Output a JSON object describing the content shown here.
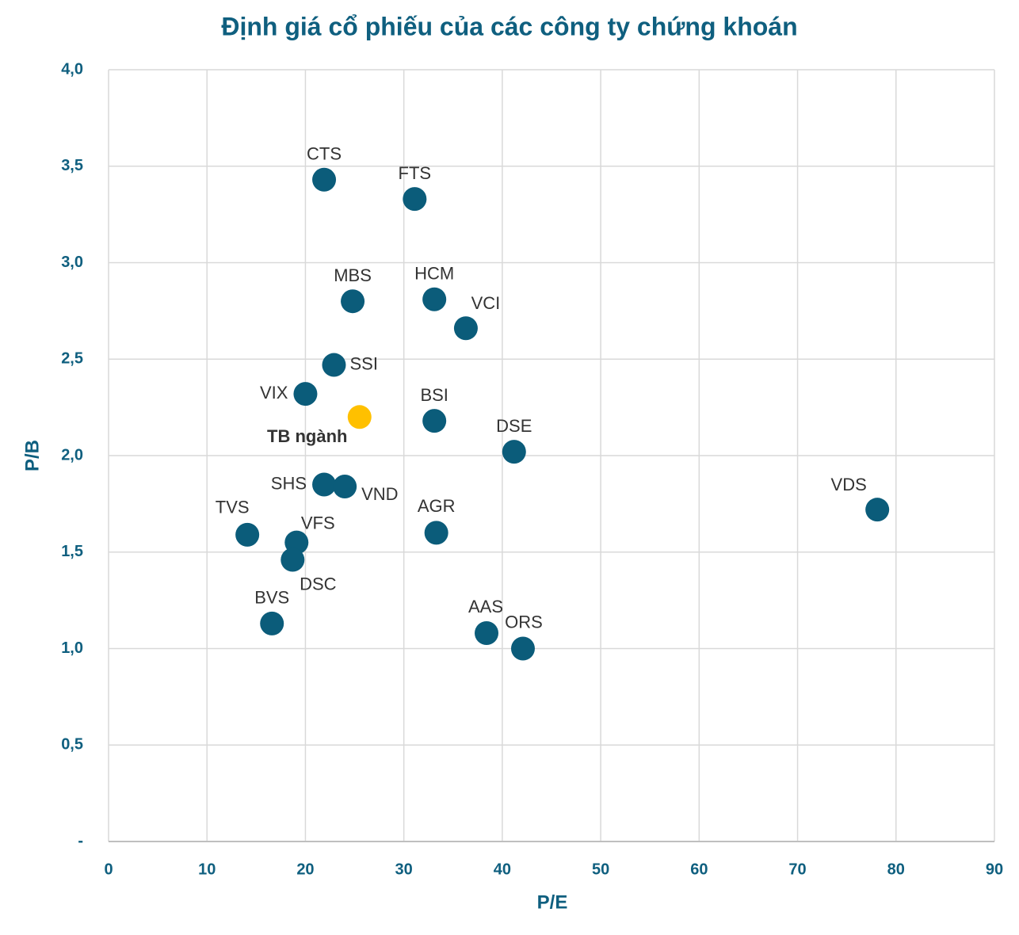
{
  "chart_data": {
    "type": "scatter",
    "title": "Định giá cổ phiếu của các công ty chứng khoán",
    "x_label": "P/E",
    "y_label": "P/B",
    "xlim": [
      0,
      90
    ],
    "xticks": [
      0,
      10,
      20,
      30,
      40,
      50,
      60,
      70,
      80,
      90
    ],
    "ylim": [
      0,
      4
    ],
    "yticks": [
      {
        "value": 0,
        "label": "-"
      },
      {
        "value": 0.5,
        "label": "0,5"
      },
      {
        "value": 1,
        "label": "1,0"
      },
      {
        "value": 1.5,
        "label": "1,5"
      },
      {
        "value": 2,
        "label": "2,0"
      },
      {
        "value": 2.5,
        "label": "2,5"
      },
      {
        "value": 3,
        "label": "3,0"
      },
      {
        "value": 3.5,
        "label": "3,5"
      },
      {
        "value": 4,
        "label": "4,0"
      }
    ],
    "grid": true,
    "series": [
      {
        "color": "#0b5c7a",
        "labels": [
          "CTS",
          "FTS",
          "MBS",
          "HCM",
          "VCI",
          "SSI",
          "VIX",
          "BSI",
          "DSE",
          "SHS",
          "VND",
          "VDS",
          "TVS",
          "AGR",
          "VFS",
          "DSC",
          "BVS",
          "AAS",
          "ORS"
        ],
        "x": [
          21.9,
          31.1,
          24.8,
          33.1,
          36.3,
          22.9,
          20.0,
          33.1,
          41.2,
          21.9,
          24.0,
          78.1,
          14.1,
          33.3,
          19.1,
          18.7,
          16.6,
          38.4,
          42.1
        ],
        "y": [
          3.43,
          3.33,
          2.8,
          2.81,
          2.66,
          2.47,
          2.32,
          2.18,
          2.02,
          1.85,
          1.84,
          1.72,
          1.59,
          1.6,
          1.55,
          1.46,
          1.13,
          1.08,
          1.0
        ]
      },
      {
        "color": "#ffc000",
        "labels": [
          "TB ngành"
        ],
        "x": [
          25.5
        ],
        "y": [
          2.2
        ]
      }
    ]
  }
}
